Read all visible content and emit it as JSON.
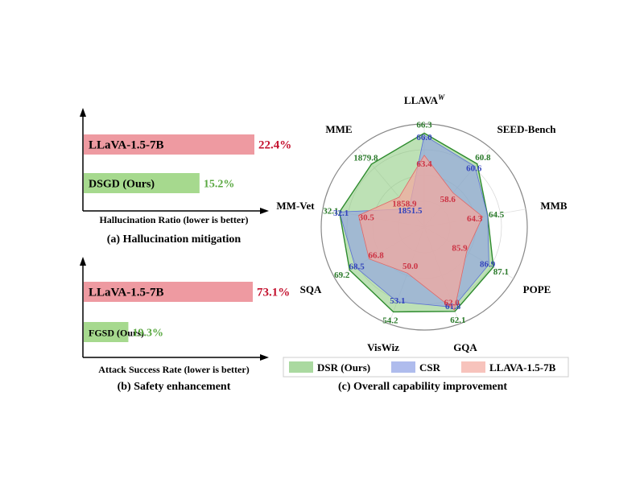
{
  "colors": {
    "red_bar": "#ee9aa1",
    "green_bar": "#a6d98e",
    "red_text": "#c4122f",
    "green_text": "#5aa841",
    "dsr_fill": "#86c978",
    "dsr_line": "#2e8b2e",
    "csr_fill": "#8d9fe6",
    "csr_line": "#5a6fd6",
    "llava_fill": "#f3a9a0",
    "llava_line": "#e06666",
    "axis_green": "#2a7a2a",
    "axis_blue": "#3344bb",
    "axis_red": "#cc3344"
  },
  "panel_a": {
    "caption": "(a) Hallucination mitigation",
    "xlabel": "Hallucination Ratio (lower is better)"
  },
  "panel_b": {
    "caption": "(b) Safety enhancement",
    "xlabel": "Attack Success Rate (lower is better)"
  },
  "panel_c": {
    "caption": "(c) Overall capability improvement"
  },
  "chart_data": [
    {
      "type": "bar",
      "orientation": "horizontal",
      "categories": [
        "LLaVA-1.5-7B",
        "DSGD (Ours)"
      ],
      "values": [
        22.4,
        15.2
      ],
      "value_labels": [
        "22.4%",
        "15.2%"
      ],
      "xlabel": "Hallucination Ratio (lower is better)",
      "caption": "(a) Hallucination mitigation"
    },
    {
      "type": "bar",
      "orientation": "horizontal",
      "categories": [
        "LLaVA-1.5-7B",
        "FGSD (Ours)"
      ],
      "values": [
        73.1,
        19.3
      ],
      "value_labels": [
        "73.1%",
        "19.3%"
      ],
      "xlabel": "Attack Success Rate (lower is better)",
      "caption": "(b) Safety enhancement"
    },
    {
      "type": "radar",
      "axes": [
        "LLAVA^W",
        "SEED-Bench",
        "MMB",
        "POPE",
        "GQA",
        "VisWiz",
        "SQA",
        "MM-Vet",
        "MME"
      ],
      "series": [
        {
          "name": "DSR (Ours)",
          "values": [
            66.3,
            60.8,
            64.5,
            87.1,
            62.1,
            54.2,
            69.2,
            32.1,
            1879.8
          ]
        },
        {
          "name": "CSR",
          "values": [
            66.0,
            60.6,
            null,
            86.9,
            61.8,
            53.1,
            68.5,
            32.1,
            1851.5
          ]
        },
        {
          "name": "LLAVA-1.5-7B",
          "values": [
            63.4,
            58.6,
            64.3,
            85.9,
            62.0,
            50.0,
            66.8,
            30.5,
            1858.9
          ]
        }
      ],
      "legend": [
        "DSR (Ours)",
        "CSR",
        "LLAVA-1.5-7B"
      ],
      "legend_position": "bottom",
      "caption": "(c) Overall capability improvement"
    }
  ]
}
